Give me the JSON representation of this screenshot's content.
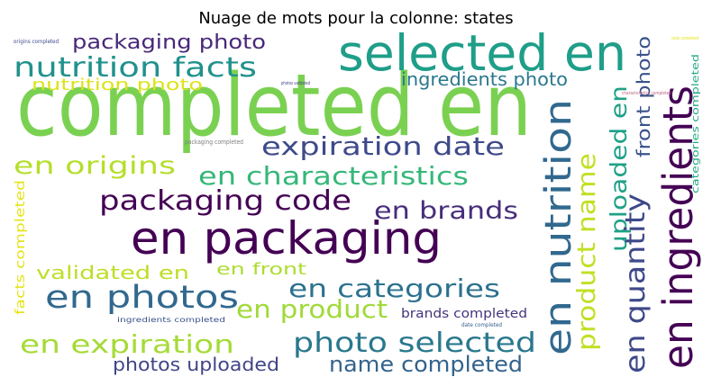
{
  "chart_data": {
    "type": "wordcloud",
    "title": "Nuage de mots pour la colonne: states",
    "words": [
      {
        "text": "completed en",
        "color": "#7ad151"
      },
      {
        "text": "selected en",
        "color": "#1f9e89"
      },
      {
        "text": "en packaging",
        "color": "#440154"
      },
      {
        "text": "en ingredients",
        "color": "#440154"
      },
      {
        "text": "en nutrition",
        "color": "#31688e"
      },
      {
        "text": "nutrition facts",
        "color": "#21918c"
      },
      {
        "text": "packaging photo",
        "color": "#482878"
      },
      {
        "text": "nutrition photo",
        "color": "#dde318"
      },
      {
        "text": "ingredients photo",
        "color": "#2a788e"
      },
      {
        "text": "uploaded en",
        "color": "#1fa187"
      },
      {
        "text": "front photo",
        "color": "#3b528b"
      },
      {
        "text": "categories completed",
        "color": "#22a884"
      },
      {
        "text": "expiration date",
        "color": "#3e4a89"
      },
      {
        "text": "en origins",
        "color": "#b5de2b"
      },
      {
        "text": "en characteristics",
        "color": "#35b779"
      },
      {
        "text": "packaging code",
        "color": "#440154"
      },
      {
        "text": "en brands",
        "color": "#472d7b"
      },
      {
        "text": "product name",
        "color": "#c2df23"
      },
      {
        "text": "en quantity",
        "color": "#3e4989"
      },
      {
        "text": "validated en",
        "color": "#bddf26"
      },
      {
        "text": "en front",
        "color": "#addc30"
      },
      {
        "text": "facts completed",
        "color": "#e5e419"
      },
      {
        "text": "en photos",
        "color": "#31688e"
      },
      {
        "text": "en categories",
        "color": "#2c728e"
      },
      {
        "text": "en product",
        "color": "#a0da39"
      },
      {
        "text": "brands completed",
        "color": "#46337e"
      },
      {
        "text": "ingredients completed",
        "color": "#3b528b"
      },
      {
        "text": "date completed",
        "color": "#365c8d"
      },
      {
        "text": "en expiration",
        "color": "#a5db36"
      },
      {
        "text": "photo selected",
        "color": "#2a788e"
      },
      {
        "text": "photos uploaded",
        "color": "#414487"
      },
      {
        "text": "name completed",
        "color": "#33638d"
      },
      {
        "text": "origins completed",
        "color": "#3e4a89"
      },
      {
        "text": "photos validated",
        "color": "#443a83"
      },
      {
        "text": "packaging completed",
        "color": "#7f7f7f"
      },
      {
        "text": "characteristics completed",
        "color": "#b8627d"
      },
      {
        "text": "code completed",
        "color": "#e5e419"
      }
    ]
  }
}
